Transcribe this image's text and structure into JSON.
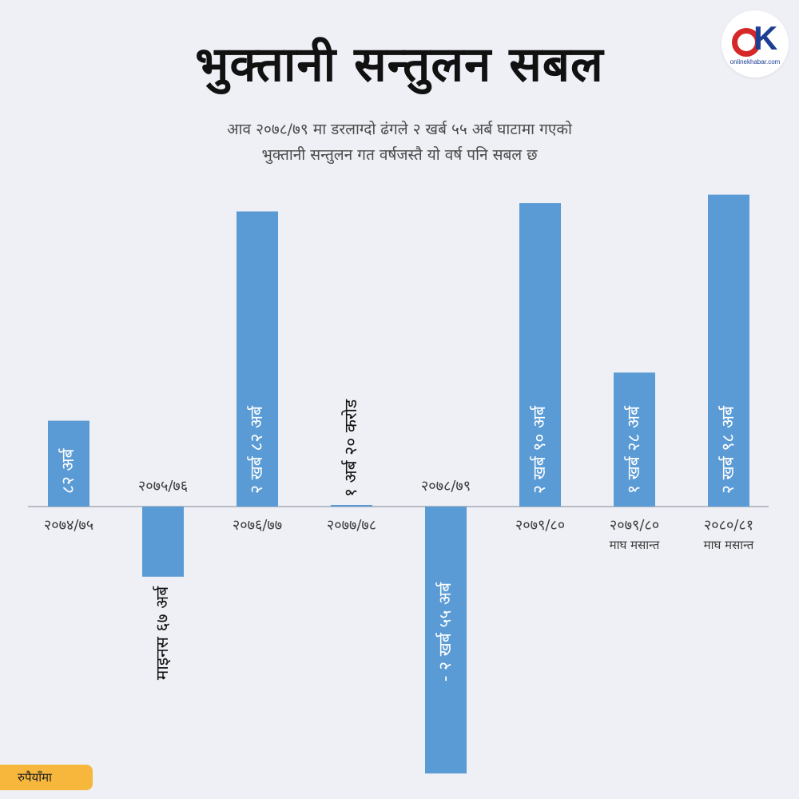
{
  "header": {
    "title": "भुक्तानी सन्तुलन सबल",
    "subtitle_line1": "आव २०७८/७९ मा डरलाग्दो ढंगले २ खर्ब ५५ अर्ब घाटामा गएको",
    "subtitle_line2": "भुक्तानी सन्तुलन गत वर्षजस्तै यो वर्ष पनि सबल छ"
  },
  "logo": {
    "text": "onlinekhabar.com"
  },
  "unit_label": "रुपैयाँमा",
  "colors": {
    "bar": "#5b9bd5",
    "background": "#eef0f5",
    "axis": "#b8bcc6",
    "tag": "#f6b73c"
  },
  "chart_data": {
    "type": "bar",
    "title": "भुक्तानी सन्तुलन सबल",
    "ylabel": "",
    "xlabel": "",
    "unit": "रुपैयाँमा",
    "grid": false,
    "ylim": [
      -255,
      278
    ],
    "categories": [
      {
        "label": "२०७४/७५",
        "sub": ""
      },
      {
        "label": "२०७५/७६",
        "sub": ""
      },
      {
        "label": "२०७६/७७",
        "sub": ""
      },
      {
        "label": "२०७७/७८",
        "sub": ""
      },
      {
        "label": "२०७८/७९",
        "sub": ""
      },
      {
        "label": "२०७९/८०",
        "sub": ""
      },
      {
        "label": "२०७९/८०",
        "sub": "माघ मसान्त"
      },
      {
        "label": "२०८०/८१",
        "sub": "माघ मसान्त"
      }
    ],
    "values": [
      82,
      -67,
      282,
      1.2,
      -255,
      290,
      128,
      298
    ],
    "data_labels": [
      "८२ अर्ब",
      "माइनस ६७ अर्ब",
      "२ खर्ब ८२ अर्ब",
      "१ अर्ब २० करोड",
      "- २ खर्ब ५५ अर्ब",
      "२ खर्ब ९० अर्ब",
      "१ खर्ब २८ अर्ब",
      "२ खर्ब ९८ अर्ब"
    ]
  }
}
